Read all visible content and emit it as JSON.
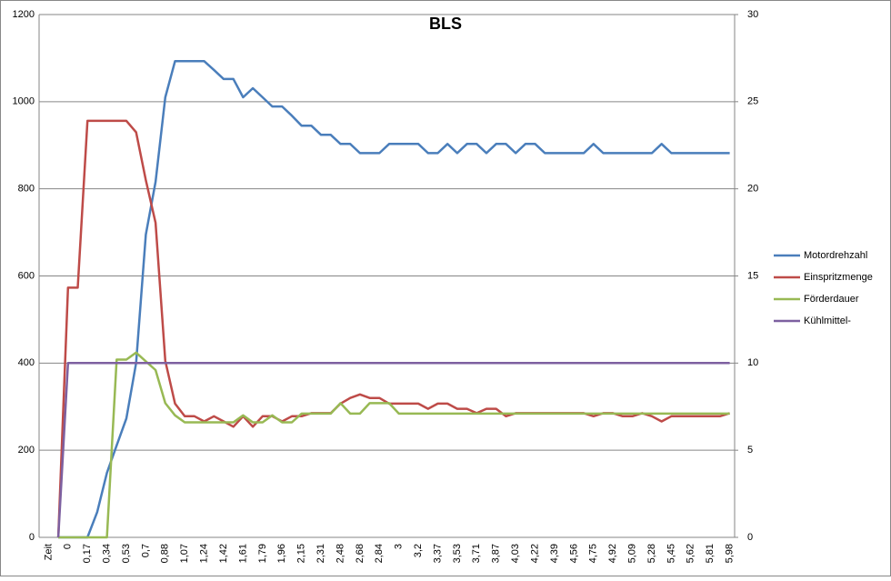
{
  "chart_data": {
    "type": "line",
    "title": "BLS",
    "categories": [
      "Zeit",
      null,
      "0",
      null,
      "0,17",
      null,
      "0,34",
      null,
      "0,53",
      null,
      "0,7",
      null,
      "0,88",
      null,
      "1,07",
      null,
      "1,24",
      null,
      "1,42",
      null,
      "1,61",
      null,
      "1,79",
      null,
      "1,96",
      null,
      "2,15",
      null,
      "2,31",
      null,
      "2,48",
      null,
      "2,68",
      null,
      "2,84",
      null,
      "3",
      null,
      "3,2",
      null,
      "3,37",
      null,
      "3,53",
      null,
      "3,71",
      null,
      "3,87",
      null,
      "4,03",
      null,
      "4,22",
      null,
      "4,39",
      null,
      "4,56",
      null,
      "4,75",
      null,
      "4,92",
      null,
      "5,09",
      null,
      "5,28",
      null,
      "5,45",
      null,
      "5,62",
      null,
      "5,81",
      null,
      "5,98"
    ],
    "series": [
      {
        "name": "Motordrehzahl",
        "color": "#4a7ebb",
        "values": [
          null,
          0,
          0,
          0,
          0,
          58,
          148,
          211,
          273,
          400,
          695,
          816,
          1010,
          1093,
          1093,
          1093,
          1093,
          1073,
          1052,
          1052,
          1010,
          1031,
          1010,
          989,
          989,
          968,
          945,
          945,
          924,
          924,
          903,
          903,
          882,
          882,
          882,
          903,
          903,
          903,
          903,
          882,
          882,
          903,
          882,
          903,
          903,
          882,
          903,
          903,
          882,
          903,
          903,
          882,
          882,
          882,
          882,
          882,
          903,
          882,
          882,
          882,
          882,
          882,
          882,
          903,
          882,
          882,
          882,
          882,
          882,
          882,
          882
        ]
      },
      {
        "name": "Einspritzmenge",
        "color": "#be4b48",
        "values": [
          null,
          0,
          573,
          573,
          956,
          956,
          956,
          956,
          956,
          930,
          820,
          722,
          405,
          307,
          278,
          278,
          266,
          278,
          266,
          254,
          278,
          254,
          278,
          278,
          266,
          278,
          278,
          285,
          285,
          285,
          307,
          320,
          328,
          320,
          320,
          307,
          307,
          307,
          307,
          295,
          307,
          307,
          295,
          295,
          285,
          295,
          295,
          278,
          285,
          285,
          285,
          285,
          285,
          285,
          285,
          285,
          278,
          285,
          285,
          278,
          278,
          285,
          278,
          266,
          278,
          278,
          278,
          278,
          278,
          278,
          285
        ]
      },
      {
        "name": "Förderdauer",
        "color": "#98b954",
        "axis": "y2",
        "values": [
          null,
          0,
          0,
          0,
          0,
          0,
          0,
          10.2,
          10.2,
          10.6,
          10.1,
          9.6,
          7.7,
          7,
          6.6,
          6.6,
          6.6,
          6.6,
          6.6,
          6.6,
          7,
          6.6,
          6.6,
          7,
          6.6,
          6.6,
          7.1,
          7.1,
          7.1,
          7.1,
          7.7,
          7.1,
          7.1,
          7.7,
          7.7,
          7.7,
          7.1,
          7.1,
          7.1,
          7.1,
          7.1,
          7.1,
          7.1,
          7.1,
          7.1,
          7.1,
          7.1,
          7.1,
          7.1,
          7.1,
          7.1,
          7.1,
          7.1,
          7.1,
          7.1,
          7.1,
          7.1,
          7.1,
          7.1,
          7.1,
          7.1,
          7.1,
          7.1,
          7.1,
          7.1,
          7.1,
          7.1,
          7.1,
          7.1,
          7.1,
          7.1
        ]
      },
      {
        "name": "Kühlmittel-",
        "color": "#7d60a0",
        "axis": "y2",
        "values": [
          null,
          0,
          10,
          10,
          10,
          10,
          10,
          10,
          10,
          10,
          10,
          10,
          10,
          10,
          10,
          10,
          10,
          10,
          10,
          10,
          10,
          10,
          10,
          10,
          10,
          10,
          10,
          10,
          10,
          10,
          10,
          10,
          10,
          10,
          10,
          10,
          10,
          10,
          10,
          10,
          10,
          10,
          10,
          10,
          10,
          10,
          10,
          10,
          10,
          10,
          10,
          10,
          10,
          10,
          10,
          10,
          10,
          10,
          10,
          10,
          10,
          10,
          10,
          10,
          10,
          10,
          10,
          10,
          10,
          10,
          10
        ]
      }
    ],
    "ylim": [
      0,
      1200
    ],
    "yticks": [
      0,
      200,
      400,
      600,
      800,
      1000,
      1200
    ],
    "y2lim": [
      0,
      30
    ],
    "y2ticks": [
      0,
      5,
      10,
      15,
      20,
      25,
      30
    ],
    "grid": true,
    "legend": "right"
  }
}
